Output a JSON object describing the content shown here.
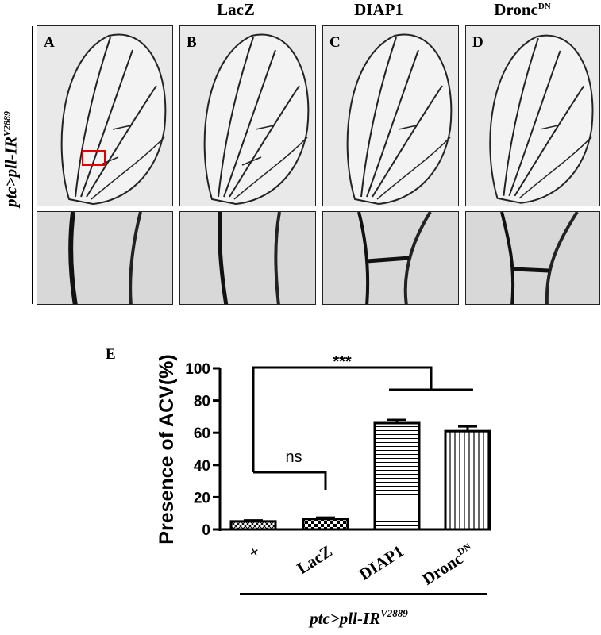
{
  "figure": {
    "row_label": "ptc>pll-IR",
    "row_label_sup": "V2889",
    "columns": [
      {
        "title": "",
        "title_sup": "",
        "letter": "A"
      },
      {
        "title": "LacZ",
        "title_sup": "",
        "letter": "B"
      },
      {
        "title": "DIAP1",
        "title_sup": "",
        "letter": "C"
      },
      {
        "title": "Dronc",
        "title_sup": "DN",
        "letter": "D"
      }
    ],
    "panel_e_letter": "E",
    "colors": {
      "inset_box": "#e00000",
      "wing_vein": "#1a1a1a",
      "wing_bg": "#eeeeee"
    }
  },
  "chart_data": {
    "type": "bar",
    "ylabel": "Presence of ACV(%)",
    "ylim": [
      0,
      100
    ],
    "yticks": [
      0,
      20,
      40,
      60,
      80,
      100
    ],
    "categories": [
      "+",
      "LacZ",
      "DIAP1",
      "Dronc"
    ],
    "category_sups": [
      "",
      "",
      "",
      "DN"
    ],
    "values": [
      5,
      6.5,
      66,
      61
    ],
    "errors": [
      0.6,
      0.8,
      2.0,
      3.0
    ],
    "patterns": [
      "crosshatch",
      "checker",
      "horizontal",
      "vertical"
    ],
    "xlabel": "ptc>pll-IR",
    "xlabel_sup": "V2889",
    "significance": [
      {
        "text": "***",
        "between": "+ vs DIAP1, Dronc"
      },
      {
        "text": "ns",
        "between": "+ vs LacZ"
      }
    ]
  }
}
